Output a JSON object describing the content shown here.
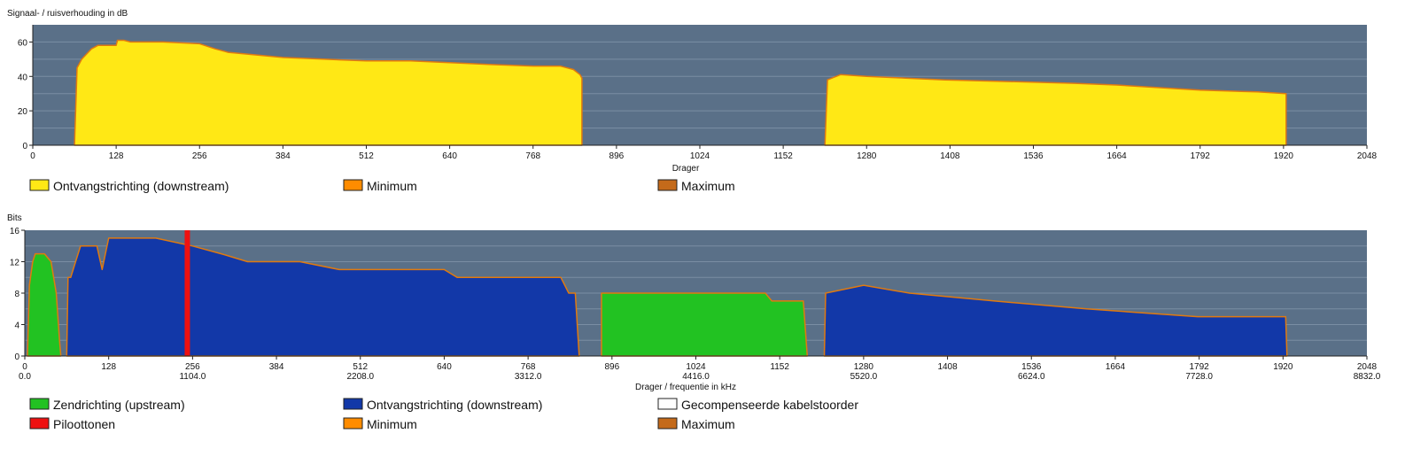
{
  "chart_data": [
    {
      "type": "area",
      "title": "Signaal- / ruisverhouding in dB",
      "xlabel": "Drager",
      "ylabel": "",
      "xlim": [
        0,
        2048
      ],
      "ylim": [
        0,
        70
      ],
      "x_ticks": [
        0,
        128,
        256,
        384,
        512,
        640,
        768,
        896,
        1024,
        1152,
        1280,
        1408,
        1536,
        1664,
        1792,
        1920,
        2048
      ],
      "y_ticks": [
        0,
        20,
        40,
        60
      ],
      "grid": true,
      "legend_position": "bottom",
      "series": [
        {
          "name": "Ontvangstrichting (downstream)",
          "color": "#ffe815",
          "segments": [
            [
              [
                64,
                0
              ],
              [
                68,
                45
              ],
              [
                75,
                50
              ],
              [
                90,
                56
              ],
              [
                100,
                58
              ],
              [
                128,
                58
              ],
              [
                130,
                61
              ],
              [
                140,
                61
              ],
              [
                150,
                60
              ],
              [
                200,
                60
              ],
              [
                256,
                59
              ],
              [
                280,
                56
              ],
              [
                300,
                54
              ],
              [
                384,
                51
              ],
              [
                450,
                50
              ],
              [
                512,
                49
              ],
              [
                580,
                49
              ],
              [
                640,
                48
              ],
              [
                700,
                47
              ],
              [
                768,
                46
              ],
              [
                810,
                46
              ],
              [
                830,
                44
              ],
              [
                840,
                41
              ],
              [
                843,
                39
              ],
              [
                843,
                0
              ]
            ],
            [
              [
                1216,
                0
              ],
              [
                1220,
                38
              ],
              [
                1240,
                41
              ],
              [
                1280,
                40
              ],
              [
                1340,
                39
              ],
              [
                1400,
                38
              ],
              [
                1500,
                37
              ],
              [
                1600,
                36
              ],
              [
                1664,
                35
              ],
              [
                1750,
                33
              ],
              [
                1792,
                32
              ],
              [
                1880,
                31
              ],
              [
                1924,
                30
              ],
              [
                1924,
                0
              ]
            ]
          ]
        },
        {
          "name": "Minimum",
          "color": "#ff8c00"
        },
        {
          "name": "Maximum",
          "color": "#c46a1a"
        }
      ]
    },
    {
      "type": "area",
      "title": "Bits",
      "xlabel": "Drager / frequentie in kHz",
      "ylabel": "",
      "xlim": [
        0,
        2048
      ],
      "ylim": [
        0,
        16
      ],
      "x_ticks": [
        0,
        128,
        256,
        384,
        512,
        640,
        768,
        896,
        1024,
        1152,
        1280,
        1408,
        1536,
        1664,
        1792,
        1920,
        2048
      ],
      "x_ticks_khz": [
        "0.0",
        "1104.0",
        "2208.0",
        "3312.0",
        "4416.0",
        "5520.0",
        "6624.0",
        "7728.0",
        "8832.0"
      ],
      "x_ticks_khz_at": [
        0,
        256,
        512,
        768,
        1024,
        1280,
        1536,
        1792,
        2048
      ],
      "y_ticks": [
        0,
        4,
        8,
        12,
        16
      ],
      "grid": true,
      "legend_position": "bottom",
      "series": [
        {
          "name": "Zendrichting (upstream)",
          "color": "#22c222",
          "segments": [
            [
              [
                4,
                0
              ],
              [
                7,
                9
              ],
              [
                12,
                12
              ],
              [
                16,
                13
              ],
              [
                30,
                13
              ],
              [
                40,
                12
              ],
              [
                48,
                8
              ],
              [
                53,
                2
              ],
              [
                55,
                0
              ]
            ],
            [
              [
                880,
                0
              ],
              [
                880,
                8
              ],
              [
                1020,
                8
              ],
              [
                1130,
                8
              ],
              [
                1140,
                7
              ],
              [
                1188,
                7
              ],
              [
                1194,
                0
              ]
            ]
          ]
        },
        {
          "name": "Ontvangstrichting (downstream)",
          "color": "#1238a8",
          "segments": [
            [
              [
                64,
                0
              ],
              [
                66,
                10
              ],
              [
                70,
                10
              ],
              [
                85,
                14
              ],
              [
                110,
                14
              ],
              [
                118,
                11
              ],
              [
                128,
                15
              ],
              [
                200,
                15
              ],
              [
                256,
                14
              ],
              [
                300,
                13
              ],
              [
                340,
                12
              ],
              [
                420,
                12
              ],
              [
                480,
                11
              ],
              [
                640,
                11
              ],
              [
                660,
                10
              ],
              [
                818,
                10
              ],
              [
                830,
                8
              ],
              [
                840,
                8
              ],
              [
                846,
                0
              ]
            ],
            [
              [
                1220,
                0
              ],
              [
                1222,
                8
              ],
              [
                1280,
                9
              ],
              [
                1350,
                8
              ],
              [
                1480,
                7
              ],
              [
                1620,
                6
              ],
              [
                1790,
                5
              ],
              [
                1840,
                5
              ],
              [
                1924,
                5
              ],
              [
                1926,
                0
              ]
            ]
          ]
        },
        {
          "name": "Gecompenseerde kabelstoorder",
          "color": "#ffffff"
        },
        {
          "name": "Piloottonen",
          "color": "#ee1111",
          "x": 248
        },
        {
          "name": "Minimum",
          "color": "#ff8c00"
        },
        {
          "name": "Maximum",
          "color": "#c46a1a"
        }
      ]
    }
  ]
}
